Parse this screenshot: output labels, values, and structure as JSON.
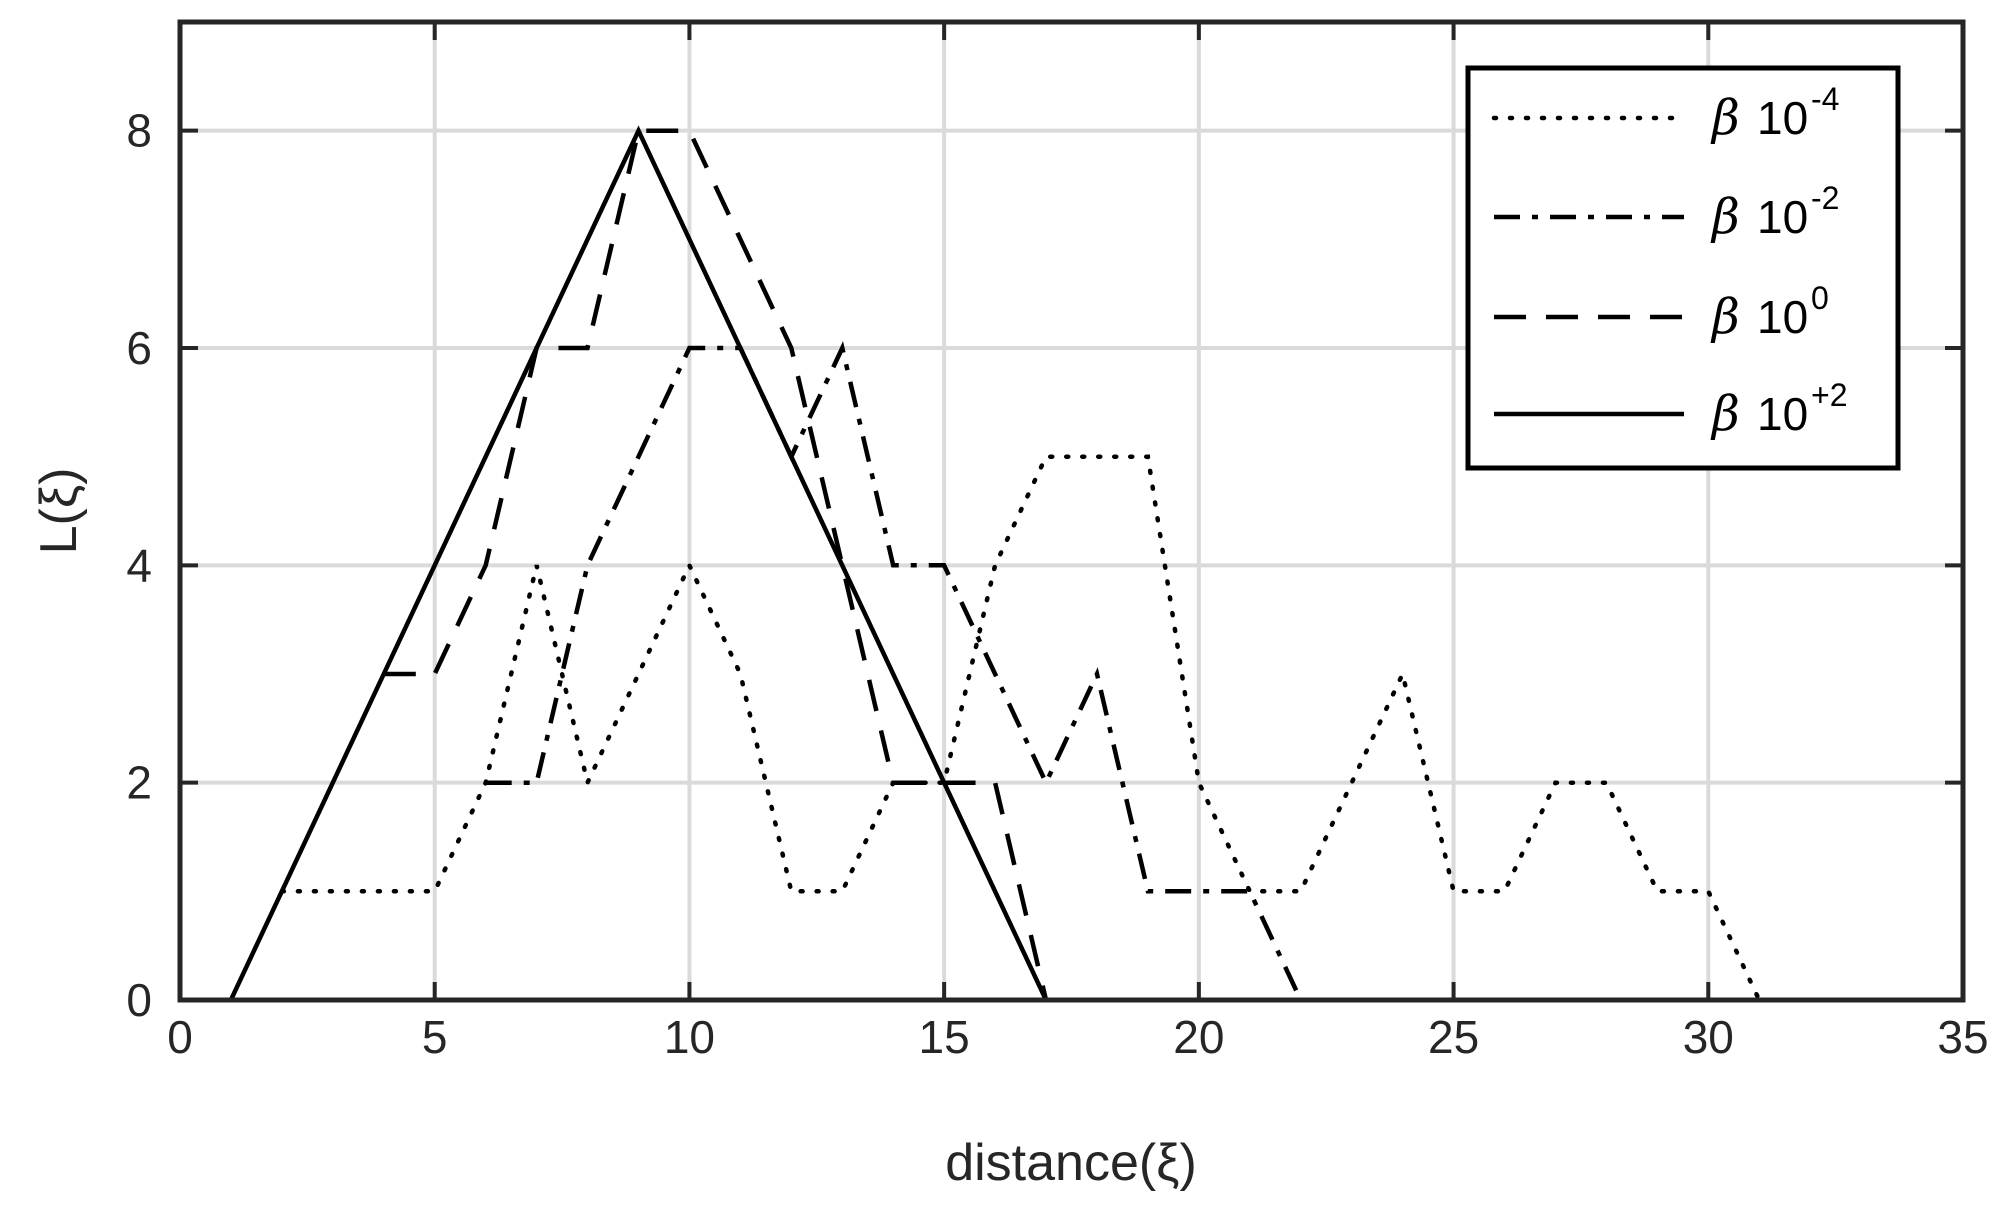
{
  "chart_data": {
    "type": "line",
    "xlabel": "distance(ξ)",
    "ylabel": "L(ξ)",
    "xlim": [
      0,
      35
    ],
    "ylim": [
      0,
      9
    ],
    "xticks": [
      "0",
      "5",
      "10",
      "15",
      "20",
      "25",
      "30",
      "35"
    ],
    "yticks": [
      "0",
      "2",
      "4",
      "6",
      "8"
    ],
    "grid": true,
    "legend_position": "top-right",
    "series": [
      {
        "name": "β 10-4",
        "legend_beta": "β",
        "legend_base": "10",
        "legend_exp": "-4",
        "style": "dotted",
        "x": [
          2,
          3,
          4,
          5,
          6,
          7,
          8,
          9,
          10,
          11,
          12,
          13,
          14,
          15,
          16,
          17,
          18,
          19,
          20,
          21,
          22,
          23,
          24,
          25,
          26,
          27,
          28,
          29,
          30,
          31
        ],
        "y": [
          1,
          1,
          1,
          1,
          2,
          4,
          2,
          3,
          4,
          3,
          1,
          1,
          2,
          2,
          4,
          5,
          5,
          5,
          2,
          1,
          1,
          2,
          3,
          1,
          1,
          2,
          2,
          1,
          1,
          0
        ]
      },
      {
        "name": "β 10-2",
        "legend_beta": "β",
        "legend_base": "10",
        "legend_exp": "-2",
        "style": "dashdot",
        "x": [
          6,
          7,
          8,
          9,
          10,
          11,
          12,
          13,
          14,
          15,
          16,
          17,
          18,
          19,
          20,
          21,
          22
        ],
        "y": [
          2,
          2,
          4,
          5,
          6,
          6,
          5,
          6,
          4,
          4,
          3,
          2,
          3,
          1,
          1,
          1,
          0
        ]
      },
      {
        "name": "β 10^0",
        "legend_beta": "β",
        "legend_base": "10",
        "legend_exp": "0",
        "style": "dashed",
        "x": [
          4,
          5,
          6,
          7,
          8,
          9,
          10,
          11,
          12,
          13,
          14,
          15,
          16,
          17
        ],
        "y": [
          3,
          3,
          4,
          6,
          6,
          8,
          8,
          7,
          6,
          4,
          2,
          2,
          2,
          0
        ]
      },
      {
        "name": "β 10+2",
        "legend_beta": "β",
        "legend_base": "10",
        "legend_exp": "+2",
        "style": "solid",
        "x": [
          1,
          9,
          17
        ],
        "y": [
          0,
          8,
          0
        ]
      }
    ]
  }
}
